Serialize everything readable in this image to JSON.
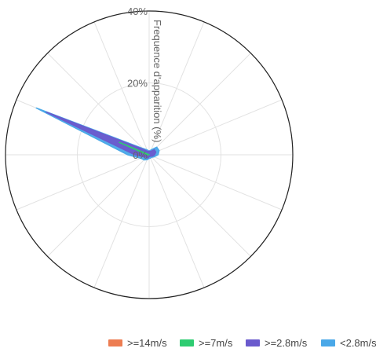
{
  "chart_data": {
    "type": "radar",
    "yaxis_label": "Frequence d'apparition (%)",
    "ticks": [
      "0%",
      "20%",
      "40%"
    ],
    "rmax": 40,
    "directions": 16,
    "series": [
      {
        "name": ">=14m/s",
        "color": "#ed7d52",
        "values": [
          0,
          0,
          0,
          0,
          0,
          0,
          0,
          0,
          0,
          0,
          0,
          0,
          0,
          0,
          0,
          0
        ]
      },
      {
        "name": ">=7m/s",
        "color": "#2ecc71",
        "values": [
          0,
          0,
          0,
          0,
          0,
          0,
          0,
          0,
          0,
          0,
          0,
          0,
          0.5,
          9,
          0,
          0
        ]
      },
      {
        "name": ">=2.8m/s",
        "color": "#6a5acd",
        "values": [
          1,
          1,
          2,
          2,
          1.5,
          1,
          0.5,
          0.5,
          0.5,
          1,
          1,
          1.5,
          4,
          31,
          2,
          1
        ]
      },
      {
        "name": "<2.8m/s",
        "color": "#4aa8e8",
        "values": [
          1,
          1.5,
          3,
          3,
          2.5,
          1.5,
          1,
          1,
          1,
          1.5,
          2,
          2.5,
          6,
          34,
          2.5,
          1.5
        ]
      }
    ]
  }
}
